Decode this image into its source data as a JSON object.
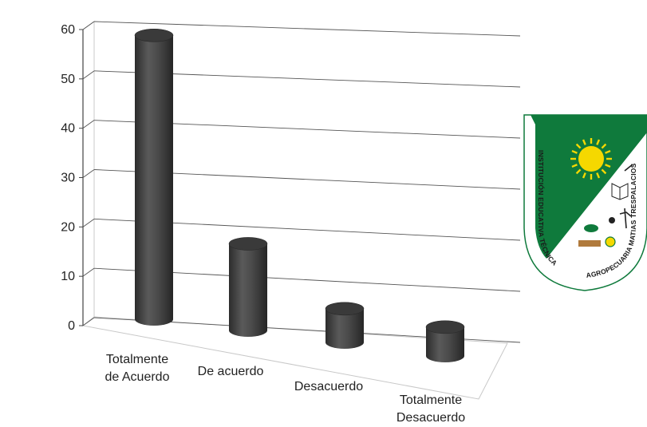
{
  "chart_data": {
    "type": "bar",
    "style": "3d-cylinder",
    "categories": [
      [
        "Totalmente",
        "de Acuerdo"
      ],
      [
        "De acuerdo"
      ],
      [
        "Desacuerdo"
      ],
      [
        "Totalmente",
        "Desacuerdo"
      ]
    ],
    "values": [
      59,
      18,
      7,
      6
    ],
    "yticks": [
      "0",
      "10",
      "20",
      "30",
      "40",
      "50",
      "60"
    ],
    "ylim": [
      0,
      60
    ],
    "grid": true,
    "legend": "none",
    "bar_color": "#4a4a4a"
  },
  "logo": {
    "text_left": "INSTITUCIÓN EDUCATIVA TÉCNICA",
    "text_right": "AGROPECUARIA MATIAS TRESPALACIOS",
    "colors": {
      "green": "#0f7a3c",
      "sun": "#f5d800"
    }
  }
}
